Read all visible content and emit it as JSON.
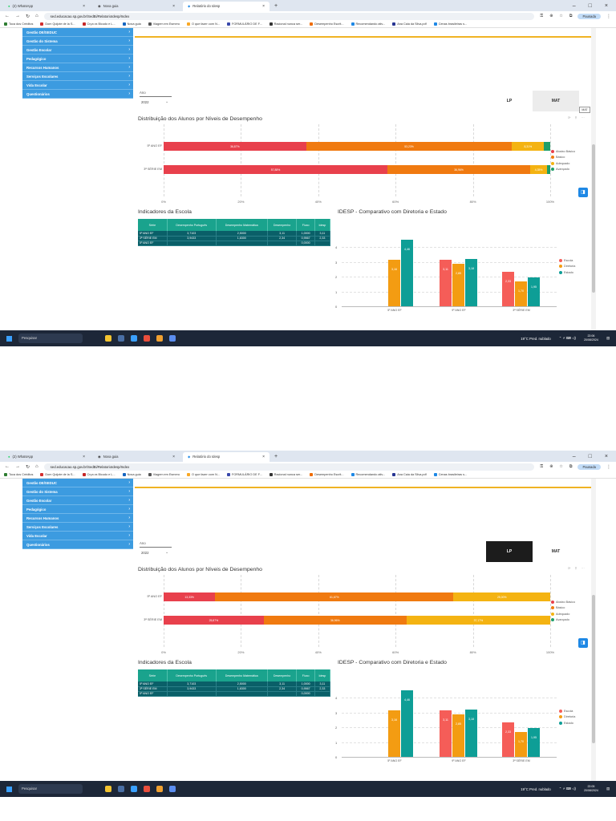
{
  "browser": {
    "tabs": [
      "(2) WhatsApp",
      "Nova guia",
      "Relatório do Idesp"
    ],
    "new_tab": "+",
    "url": "sed.educacao.sp.gov.br/SedBi/RelatorioIdesp/Index",
    "profile": "Pausada",
    "bookmarks": [
      "Toca dos Créditos",
      "Dom Quijote de la S...",
      "Crça vs Bicudo e L...",
      "Nova guia",
      "Viagem em Esmero",
      "O que fazer com N...",
      "FORMULÁRIO DE F...",
      "Racional nunca ser...",
      "Desempenho Escrit...",
      "Recomendando ativ...",
      "Ana Caia da Silva.pdf",
      "Cenas brasileiras s..."
    ]
  },
  "sidebar": {
    "items": [
      "Gestão DE/SEDUC",
      "Gestão do Sistema",
      "Gestão Escolar",
      "Pedagógico",
      "Recursos Humanos",
      "Serviços Escolares",
      "Vida Escolar",
      "Questionários"
    ]
  },
  "filter": {
    "ano_label": "Ano",
    "ano_value": "2022"
  },
  "toggle": {
    "lp": "LP",
    "mat": "MAT"
  },
  "tooltip": "MAT",
  "distribution": {
    "title": "Distribuição dos Alunos por Níveis de Desempenho",
    "axis_ticks": [
      "0%",
      "20%",
      "40%",
      "60%",
      "80%",
      "100%"
    ],
    "legend": [
      "Abaixo Básico",
      "Básico",
      "Adequado",
      "Avançado"
    ],
    "colors": [
      "#e8404c",
      "#f07a10",
      "#f4b312",
      "#1e9e6a"
    ]
  },
  "indicators": {
    "title": "Indicadores da Escola",
    "headers": [
      "Série",
      "Desempenho Português",
      "Desempenho Matemática",
      "Desempenho",
      "Fluxo",
      "Idesp"
    ],
    "rows": [
      [
        "5º ANO EF",
        "3,7103",
        "2,5000",
        "3,11",
        "1,0000",
        "3,11"
      ],
      [
        "3ª SÉRIE EM",
        "3,9433",
        "1,6300",
        "2,34",
        "0,9567",
        "2,33"
      ],
      [
        "5º ANO EF",
        "",
        "",
        "",
        "0,0000",
        ""
      ]
    ]
  },
  "idesp": {
    "title": "IDESP - Comparativo com Diretoria e Estado",
    "y_ticks": [
      "0",
      "1",
      "2",
      "3",
      "4"
    ],
    "legend": [
      "Escola",
      "Diretoria",
      "Estado"
    ],
    "colors": [
      "#f55d58",
      "#f39c12",
      "#0e9e96"
    ]
  },
  "screens": [
    {
      "lp_active": false,
      "distribution_rows": [
        {
          "label": "5º ANO EF",
          "values": [
            36.87,
            53.23,
            8.31,
            1.59
          ],
          "labels": [
            "36,87%",
            "53,23%",
            "8,31%",
            ""
          ]
        },
        {
          "label": "3ª SÉRIE EM",
          "values": [
            57.88,
            36.96,
            4.35,
            0.81
          ],
          "labels": [
            "57,88%",
            "36,96%",
            "4,35%",
            ""
          ]
        }
      ],
      "idesp_chart": {
        "categories": [
          "5º ANO EF",
          "9º ANO EF",
          "3ª SÉRIE EM"
        ],
        "series": [
          {
            "name": "Escola",
            "values": [
              null,
              3.11,
              2.33
            ],
            "labels": [
              "",
              "3,11",
              "2,33"
            ]
          },
          {
            "name": "Diretoria",
            "values": [
              3.16,
              2.85,
              1.7
            ],
            "labels": [
              "3,16",
              "2,85",
              "1,70"
            ]
          },
          {
            "name": "Estado",
            "values": [
              4.46,
              3.18,
              1.95
            ],
            "labels": [
              "4,46",
              "3,18",
              "1,95"
            ]
          }
        ]
      },
      "taskbar": {
        "search": "Pesquisar",
        "weather": "19°C Pred. nublado",
        "time": "22:06",
        "date": "20/08/2024"
      }
    },
    {
      "lp_active": true,
      "distribution_rows": [
        {
          "label": "5º ANO EF",
          "values": [
            13.33,
            61.67,
            25.0,
            0.0
          ],
          "labels": [
            "13,33%",
            "61,67%",
            "25,00%",
            ""
          ]
        },
        {
          "label": "3ª SÉRIE EM",
          "values": [
            25.87,
            36.96,
            37.17,
            0.0
          ],
          "labels": [
            "25,87%",
            "36,96%",
            "37,17%",
            ""
          ]
        }
      ],
      "idesp_chart": {
        "categories": [
          "5º ANO EF",
          "9º ANO EF",
          "3ª SÉRIE EM"
        ],
        "series": [
          {
            "name": "Escola",
            "values": [
              null,
              3.11,
              2.33
            ],
            "labels": [
              "",
              "3,11",
              "2,33"
            ]
          },
          {
            "name": "Diretoria",
            "values": [
              3.16,
              2.85,
              1.7
            ],
            "labels": [
              "3,16",
              "2,85",
              "1,70"
            ]
          },
          {
            "name": "Estado",
            "values": [
              4.46,
              3.18,
              1.95
            ],
            "labels": [
              "4,46",
              "3,18",
              "1,95"
            ]
          }
        ]
      },
      "taskbar": {
        "search": "Pesquisar",
        "weather": "19°C Pred. nublado",
        "time": "22:05",
        "date": "20/08/2024"
      }
    }
  ]
}
